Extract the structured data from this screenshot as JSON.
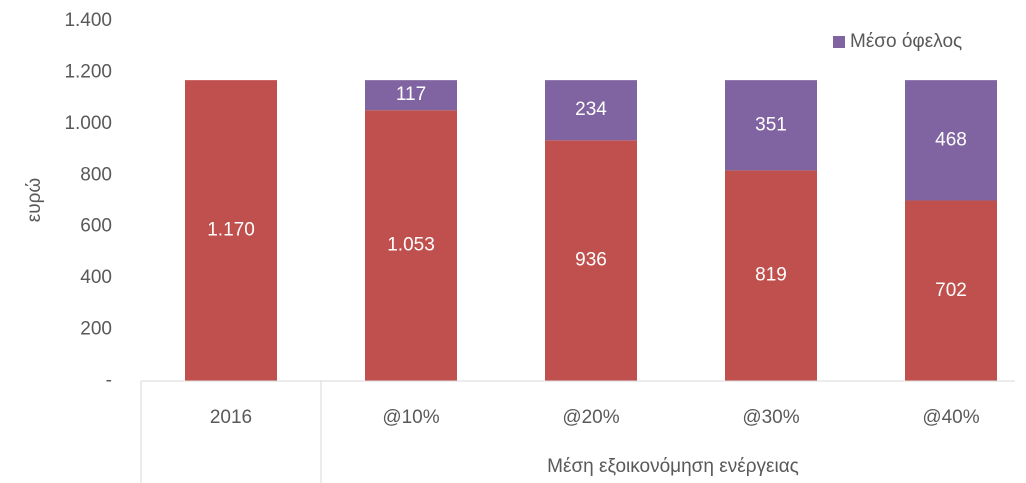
{
  "chart_data": {
    "type": "stacked_bar",
    "y_label": "ευρώ",
    "categories": [
      "2016",
      "@10%",
      "@20%",
      "@30%",
      "@40%"
    ],
    "category_group_label": "Μέση εξοικονόμηση ενέργειας",
    "series": [
      {
        "color": "#c0504d",
        "values": [
          1170,
          1053,
          936,
          819,
          702
        ],
        "value_labels": [
          "1.170",
          "1.053",
          "936",
          "819",
          "702"
        ]
      },
      {
        "name": "Μέσο όφελος",
        "color": "#8064a2",
        "values": [
          null,
          117,
          234,
          351,
          468
        ],
        "value_labels": [
          null,
          "117",
          "234",
          "351",
          "468"
        ]
      }
    ],
    "ylim": [
      0,
      1400
    ],
    "yticks": [
      {
        "value": 0,
        "label": "-"
      },
      200,
      400,
      600,
      800,
      {
        "value": 1000,
        "label": "1.000"
      },
      {
        "value": 1200,
        "label": "1.200"
      },
      {
        "value": 1400,
        "label": "1.400"
      }
    ],
    "grid": false,
    "legend": "top-right"
  }
}
